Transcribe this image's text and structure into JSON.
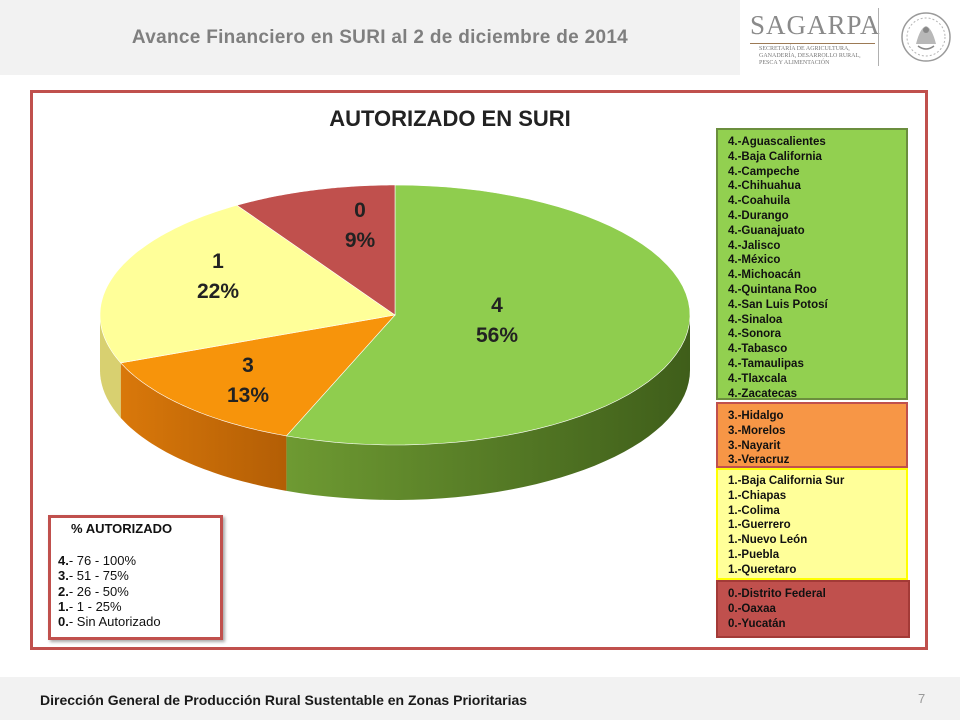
{
  "header": {
    "title": "Avance Financiero en SURI al 2 de diciembre de 2014"
  },
  "logo": {
    "name": "SAGARPA",
    "sub": [
      "SECRETARÍA DE AGRICULTURA,",
      "GANADERÍA, DESARROLLO RURAL,",
      "PESCA Y ALIMENTACIÓN"
    ]
  },
  "colors": {
    "green": "#92d050",
    "orange": "#f7940b",
    "yellow": "#ffff99",
    "red": "#c0504d",
    "frame": "#c0504d"
  },
  "chart_data": {
    "type": "pie",
    "title": "AUTORIZADO EN  SURI",
    "slices": [
      {
        "label": "4",
        "percent_label": "56%",
        "value": 56,
        "color": "#92d050"
      },
      {
        "label": "3",
        "percent_label": "13%",
        "value": 13,
        "color": "#f7940b"
      },
      {
        "label": "1",
        "percent_label": "22%",
        "value": 22,
        "color": "#ffff99"
      },
      {
        "label": "0",
        "percent_label": "9%",
        "value": 9,
        "color": "#c0504d"
      }
    ]
  },
  "legend_groups": [
    {
      "level": "4",
      "items": [
        "4.-Aguascalientes",
        "4.-Baja California",
        "4.-Campeche",
        "4.-Chihuahua",
        "4.-Coahuila",
        "4.-Durango",
        "4.-Guanajuato",
        "4.-Jalisco",
        "4.-México",
        "4.-Michoacán",
        "4.-Quintana Roo",
        "4.-San Luis Potosí",
        "4.-Sinaloa",
        "4.-Sonora",
        "4.-Tabasco",
        "4.-Tamaulipas",
        "4.-Tlaxcala",
        "4.-Zacatecas"
      ]
    },
    {
      "level": "3",
      "items": [
        "3.-Hidalgo",
        "3.-Morelos",
        "3.-Nayarit",
        "3.-Veracruz"
      ]
    },
    {
      "level": "1",
      "items": [
        "1.-Baja California Sur",
        "1.-Chiapas",
        "1.-Colima",
        "1.-Guerrero",
        "1.-Nuevo León",
        "1.-Puebla",
        "1.-Queretaro"
      ]
    },
    {
      "level": "0",
      "items": [
        "0.-Distrito Federal",
        "0.-Oaxaa",
        "0.-Yucatán"
      ]
    }
  ],
  "key": {
    "title": "% AUTORIZADO",
    "rows": [
      {
        "num": "4.",
        "text": "- 76 - 100%"
      },
      {
        "num": "3.",
        "text": "- 51 - 75%"
      },
      {
        "num": "2.",
        "text": "- 26 - 50%"
      },
      {
        "num": "1.",
        "text": "-  1  - 25%"
      },
      {
        "num": "0.",
        "text": "- Sin Autorizado"
      }
    ]
  },
  "footer": {
    "text": "Dirección General de Producción Rural Sustentable en Zonas Prioritarias",
    "page": "7"
  }
}
